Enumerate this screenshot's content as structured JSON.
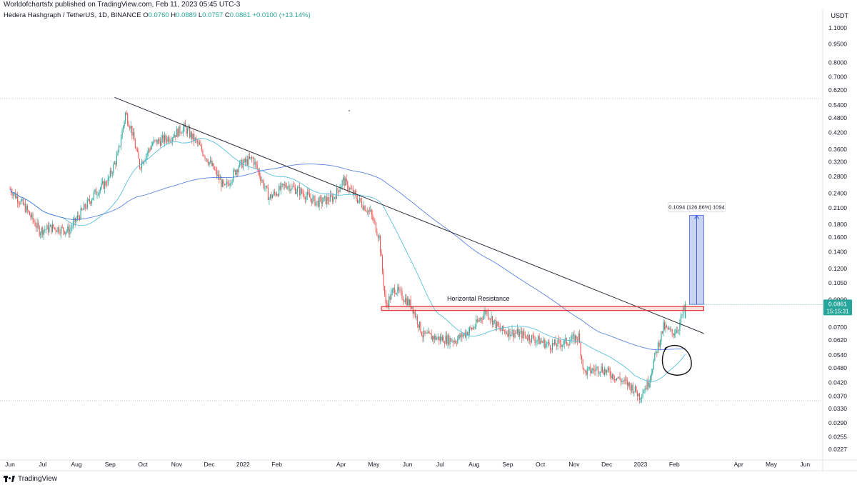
{
  "header": {
    "publish_line": "Worldofchartsfx published on TradingView.com, Feb 11, 2023 05:45 UTC-3"
  },
  "legend": {
    "symbol": "Hedera Hashgraph / TetherUS, 1D, BINANCE",
    "open_label": "O",
    "open": "0.0760",
    "high_label": "H",
    "high": "0.0889",
    "low_label": "L",
    "low": "0.0757",
    "close_label": "C",
    "close": "0.0861",
    "change": "+0.0100 (+13.14%)"
  },
  "price_axis": {
    "currency": "USDT",
    "last_price_label": "0.0861",
    "countdown_label": "15:15:31"
  },
  "annotations": {
    "resistance_label": "Horizontal Resistance",
    "measure_label": "0.1094 (126.86%) 1094"
  },
  "branding": {
    "logo_text": "TradingView"
  },
  "colors": {
    "up": "#26a69a",
    "down": "#ef5350",
    "ma_fast": "#5bc0de",
    "ma_slow": "#3f6fd8",
    "trendline": "#2a2e39",
    "resistance": "#e0303a",
    "measure_fill": "#b7c6ef",
    "measure_line": "#3d62d9",
    "price_badge": "#26a69a"
  },
  "chart_data": {
    "type": "candlestick",
    "scale": "log",
    "ylim": [
      0.021,
      1.2
    ],
    "y_ticks": [
      "1.1000",
      "0.9500",
      "0.8000",
      "0.7000",
      "0.6200",
      "0.5400",
      "0.4800",
      "0.4200",
      "0.3600",
      "0.3200",
      "0.2800",
      "0.2400",
      "0.2100",
      "0.1800",
      "0.1600",
      "0.1400",
      "0.1200",
      "0.1050",
      "0.0900",
      "0.0800",
      "0.0700",
      "0.0620",
      "0.0540",
      "0.0480",
      "0.0420",
      "0.0370",
      "0.0330",
      "0.0290",
      "0.0255",
      "0.0227"
    ],
    "x_ticks": [
      "Jun",
      "Jul",
      "Aug",
      "Sep",
      "Oct",
      "Nov",
      "Dec",
      "2022",
      "Feb",
      "Apr",
      "May",
      "Jun",
      "Jul",
      "Aug",
      "Sep",
      "Oct",
      "Nov",
      "Dec",
      "2023",
      "Feb",
      "Apr",
      "May",
      "Jun"
    ],
    "close_path": [
      [
        "2021-06-01",
        0.25
      ],
      [
        "2021-06-15",
        0.21
      ],
      [
        "2021-06-28",
        0.17
      ],
      [
        "2021-07-10",
        0.175
      ],
      [
        "2021-07-25",
        0.17
      ],
      [
        "2021-08-05",
        0.2
      ],
      [
        "2021-08-18",
        0.24
      ],
      [
        "2021-08-30",
        0.27
      ],
      [
        "2021-09-08",
        0.34
      ],
      [
        "2021-09-15",
        0.5
      ],
      [
        "2021-09-20",
        0.44
      ],
      [
        "2021-09-28",
        0.31
      ],
      [
        "2021-10-10",
        0.38
      ],
      [
        "2021-10-25",
        0.4
      ],
      [
        "2021-11-08",
        0.44
      ],
      [
        "2021-11-20",
        0.38
      ],
      [
        "2021-12-05",
        0.3
      ],
      [
        "2021-12-15",
        0.25
      ],
      [
        "2021-12-28",
        0.31
      ],
      [
        "2022-01-10",
        0.33
      ],
      [
        "2022-01-25",
        0.23
      ],
      [
        "2022-02-10",
        0.26
      ],
      [
        "2022-02-25",
        0.24
      ],
      [
        "2022-03-10",
        0.22
      ],
      [
        "2022-03-25",
        0.23
      ],
      [
        "2022-04-03",
        0.27
      ],
      [
        "2022-04-15",
        0.23
      ],
      [
        "2022-04-28",
        0.2
      ],
      [
        "2022-05-06",
        0.16
      ],
      [
        "2022-05-12",
        0.085
      ],
      [
        "2022-05-20",
        0.1
      ],
      [
        "2022-06-05",
        0.085
      ],
      [
        "2022-06-15",
        0.065
      ],
      [
        "2022-06-30",
        0.063
      ],
      [
        "2022-07-15",
        0.062
      ],
      [
        "2022-08-01",
        0.07
      ],
      [
        "2022-08-12",
        0.081
      ],
      [
        "2022-08-25",
        0.068
      ],
      [
        "2022-09-10",
        0.066
      ],
      [
        "2022-09-25",
        0.063
      ],
      [
        "2022-10-10",
        0.059
      ],
      [
        "2022-10-25",
        0.061
      ],
      [
        "2022-11-05",
        0.064
      ],
      [
        "2022-11-10",
        0.046
      ],
      [
        "2022-11-25",
        0.048
      ],
      [
        "2022-12-10",
        0.044
      ],
      [
        "2022-12-25",
        0.04
      ],
      [
        "2022-12-31",
        0.037
      ],
      [
        "2023-01-08",
        0.042
      ],
      [
        "2023-01-15",
        0.055
      ],
      [
        "2023-01-22",
        0.07
      ],
      [
        "2023-01-30",
        0.066
      ],
      [
        "2023-02-05",
        0.07
      ],
      [
        "2023-02-11",
        0.0861
      ]
    ],
    "last_candle": {
      "date": "2023-02-11",
      "open": 0.076,
      "high": 0.0889,
      "low": 0.0757,
      "close": 0.0861
    },
    "series": [
      {
        "type": "trendline",
        "points": [
          [
            "2021-09-05",
            0.58
          ],
          [
            "2023-02-28",
            0.066
          ]
        ]
      },
      {
        "type": "horizontal_resistance",
        "price_range": [
          0.0815,
          0.0845
        ],
        "from": "2022-05-08",
        "to": "2023-02-28"
      },
      {
        "type": "price_range_measure",
        "from_price": 0.0862,
        "to_price": 0.1956,
        "from": "2023-02-15",
        "to": "2023-02-28"
      }
    ]
  }
}
